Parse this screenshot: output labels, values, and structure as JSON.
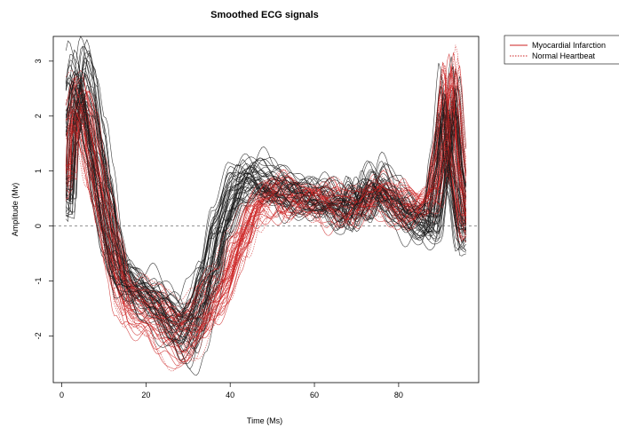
{
  "chart_data": {
    "type": "line",
    "title": "Smoothed ECG signals",
    "xlabel": "Time (Ms)",
    "ylabel": "Amplitude (Mv)",
    "xlim": [
      -2,
      99
    ],
    "ylim": [
      -2.85,
      3.45
    ],
    "xticks": [
      0,
      20,
      40,
      60,
      80
    ],
    "yticks": [
      -2,
      -1,
      0,
      1,
      2,
      3
    ],
    "reference_line": {
      "y": 0,
      "style": "dashed",
      "color": "#555555"
    },
    "grid": false,
    "legend": {
      "placement": "top-right",
      "entries": [
        {
          "label": "Myocardial Infarction",
          "color": "#cc2222",
          "style": "solid"
        },
        {
          "label": "Normal Heartbeat",
          "color": "#cc2222",
          "style": "dotted"
        }
      ]
    },
    "series": [
      {
        "group": "black",
        "color": "#1a1a1a",
        "count": 45,
        "x": [
          1,
          2,
          4,
          6,
          8,
          10,
          12,
          14,
          16,
          20,
          24,
          28,
          30,
          32,
          35,
          38,
          42,
          46,
          50,
          55,
          60,
          65,
          68,
          70,
          72,
          75,
          78,
          80,
          84,
          88,
          90,
          92,
          94,
          96
        ],
        "values": [
          0.5,
          2.0,
          2.8,
          2.4,
          1.5,
          0.6,
          -0.3,
          -0.9,
          -1.1,
          -1.3,
          -1.6,
          -1.9,
          -2.0,
          -1.7,
          -1.0,
          0.0,
          0.8,
          0.9,
          0.7,
          0.6,
          0.5,
          0.4,
          0.2,
          0.6,
          0.4,
          0.8,
          0.5,
          0.3,
          0.1,
          0.0,
          1.0,
          2.3,
          0.8,
          -0.2
        ]
      },
      {
        "group": "red",
        "color": "#cc2222",
        "count": 45,
        "x": [
          1,
          2,
          4,
          6,
          8,
          10,
          12,
          14,
          16,
          20,
          24,
          28,
          30,
          34,
          38,
          42,
          46,
          50,
          55,
          60,
          65,
          70,
          75,
          80,
          84,
          88,
          90,
          92,
          94,
          96
        ],
        "values": [
          0.8,
          2.1,
          2.3,
          1.8,
          1.0,
          0.2,
          -0.5,
          -1.1,
          -1.5,
          -1.6,
          -1.8,
          -2.1,
          -2.0,
          -1.6,
          -1.2,
          -0.4,
          0.3,
          0.6,
          0.5,
          0.45,
          0.4,
          0.35,
          0.6,
          0.4,
          0.3,
          0.5,
          1.3,
          2.6,
          1.0,
          0.0
        ]
      }
    ]
  }
}
